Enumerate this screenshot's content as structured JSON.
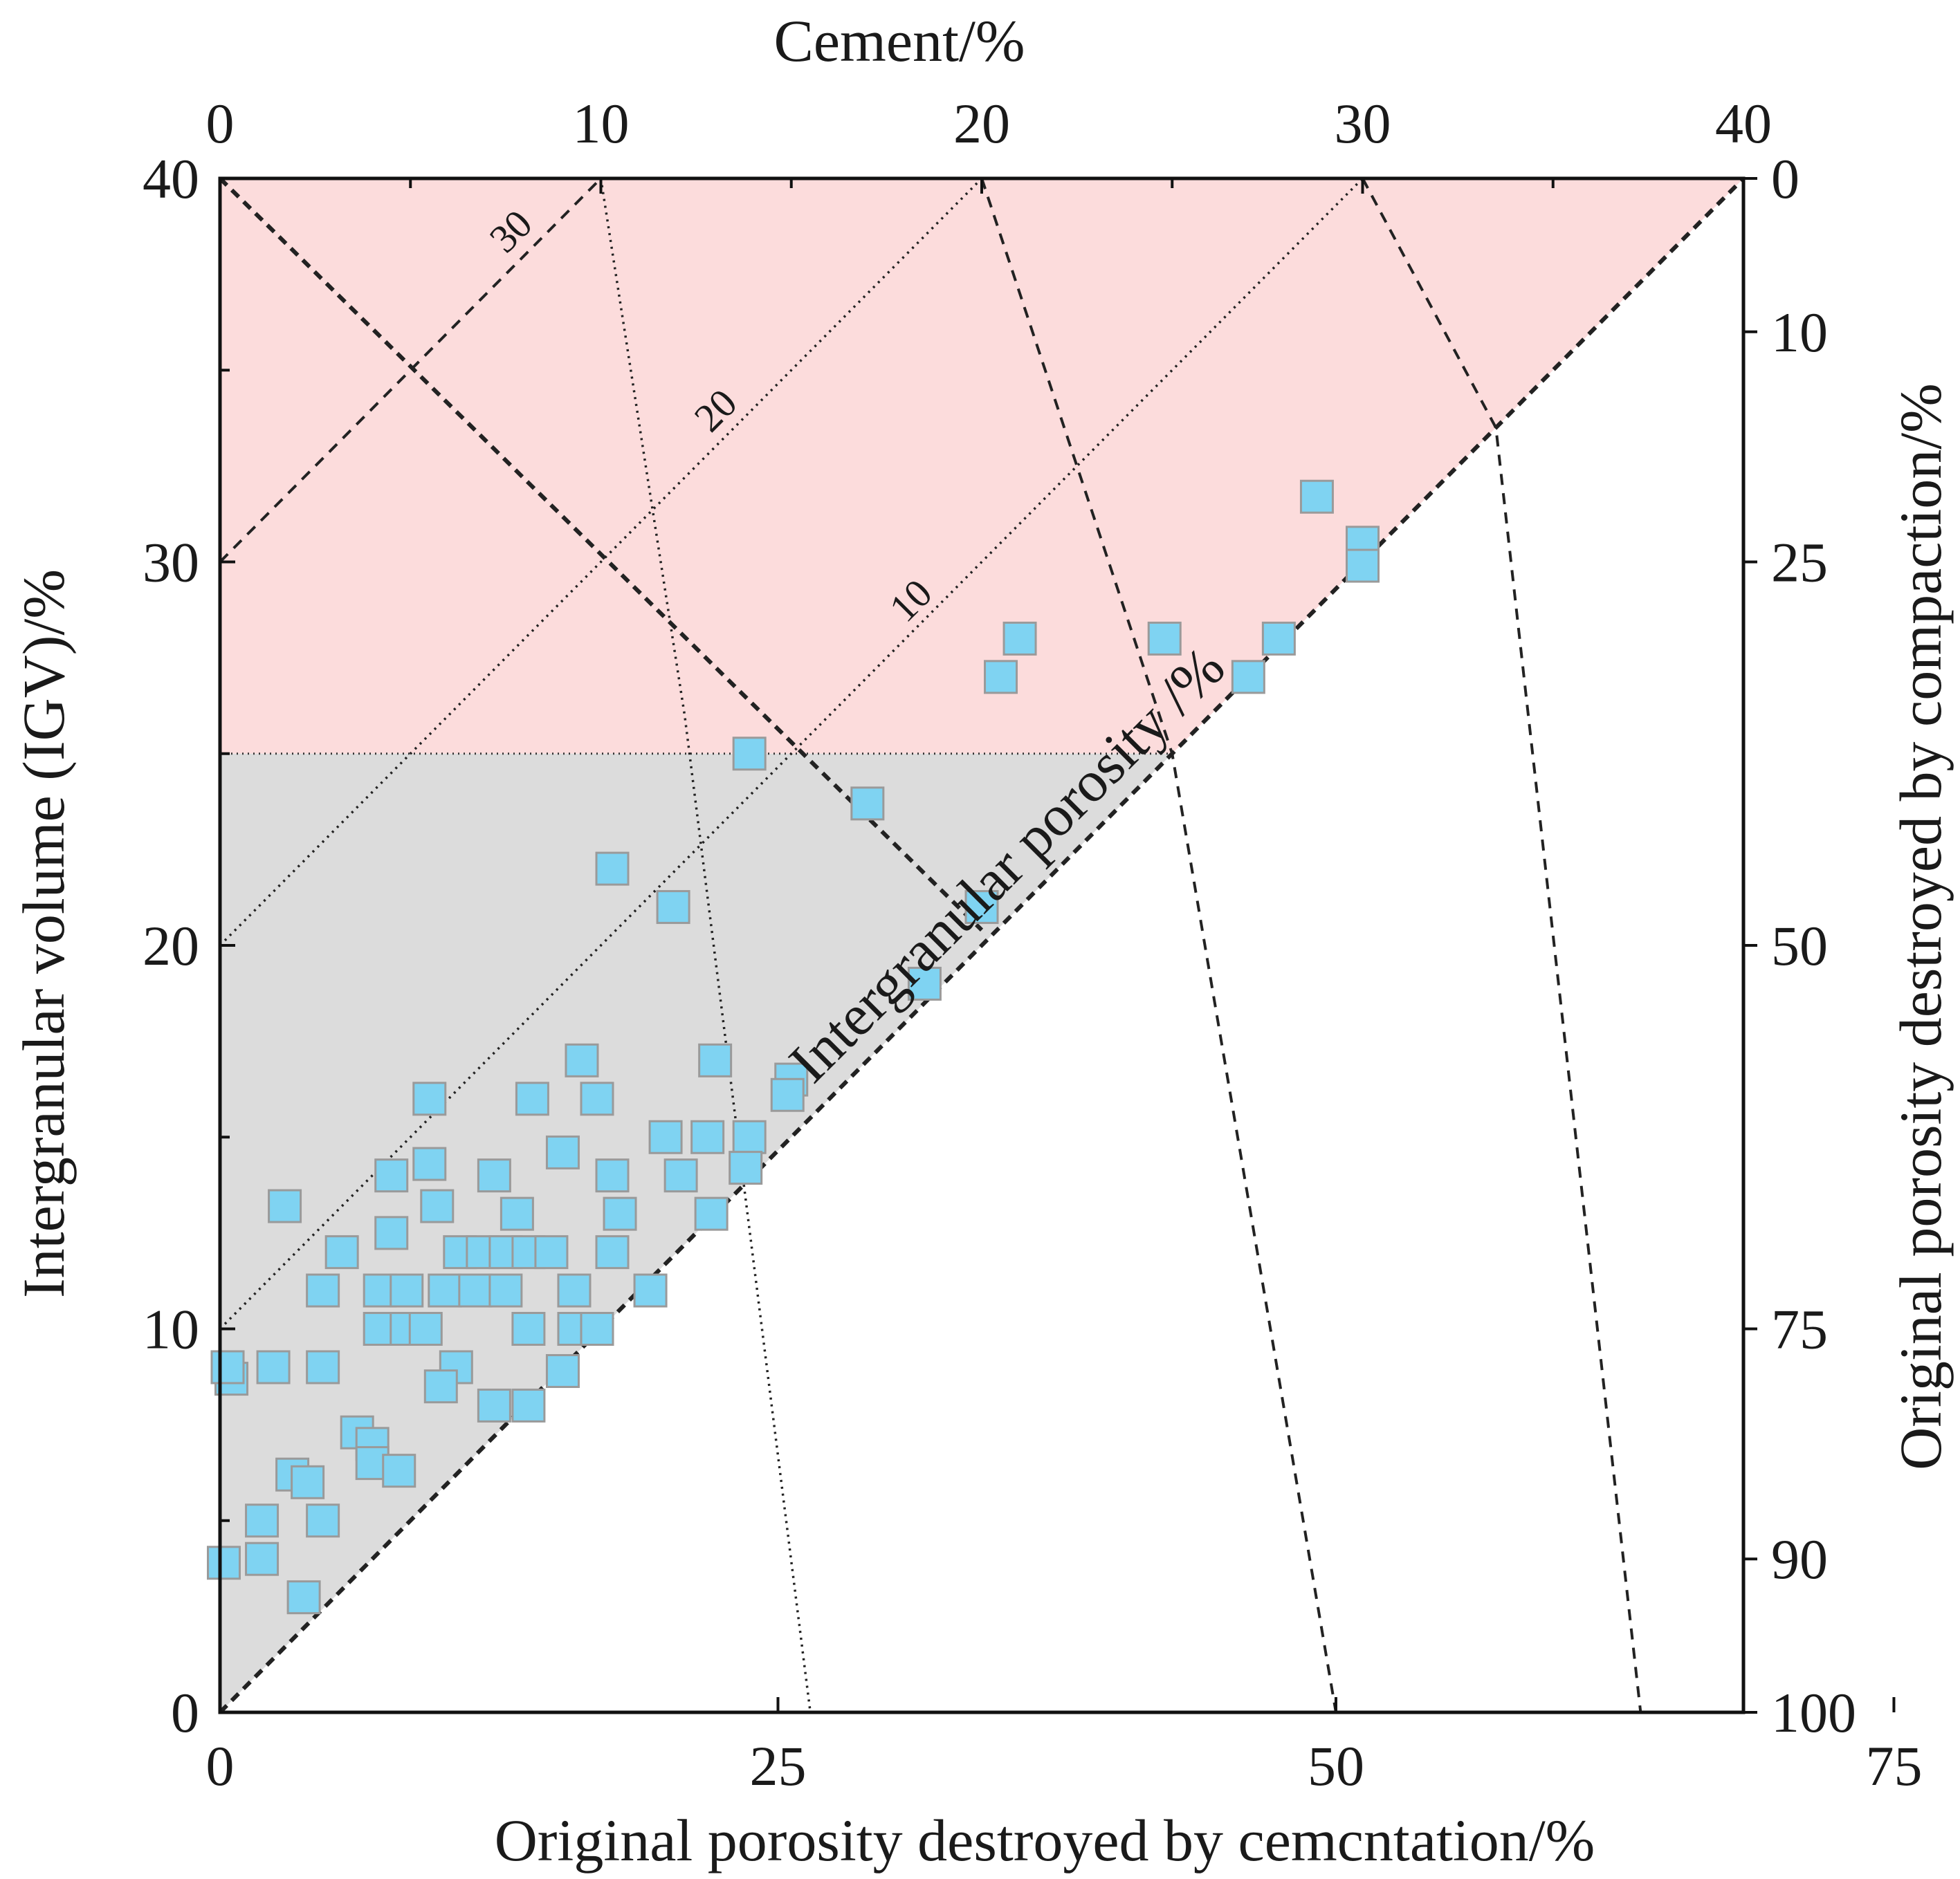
{
  "chart_data": {
    "type": "scatter",
    "title": "",
    "top_axis": {
      "label": "Cement/%",
      "range": [
        0,
        40
      ],
      "ticks": [
        "0",
        "10",
        "20",
        "30",
        "40"
      ]
    },
    "left_axis": {
      "label": "Intergranular volume (IGV)/%",
      "range": [
        0,
        40
      ],
      "ticks": [
        "0",
        "10",
        "20",
        "30",
        "40"
      ]
    },
    "right_axis": {
      "label": "Original porosity destroyed by compaction/%",
      "ticks": [
        "0",
        "10",
        "25",
        "50",
        "75",
        "90",
        "100"
      ]
    },
    "bottom_axis": {
      "label": "Original porosity destroyed by cemcntation/%",
      "ticks": [
        "0",
        "25",
        "50",
        "75"
      ]
    },
    "diagonal_label": "Intergranular porosity /%",
    "porosity_line_labels": [
      "30",
      "20",
      "10"
    ],
    "colors": {
      "upper_region": "#fcdcdc",
      "lower_region": "#dcdcdc",
      "marker": "#7fd3f2",
      "marker_edge": "#9a9a9a"
    },
    "series": [
      {
        "name": "samples",
        "marker": "square",
        "points": [
          [
            28.8,
            31.7
          ],
          [
            30,
            30.5
          ],
          [
            30,
            29.9
          ],
          [
            21,
            28
          ],
          [
            24.8,
            28
          ],
          [
            27.8,
            28
          ],
          [
            20.5,
            27
          ],
          [
            27,
            27
          ],
          [
            13.9,
            25
          ],
          [
            17,
            23.7
          ],
          [
            20,
            21
          ],
          [
            10.3,
            22
          ],
          [
            11.9,
            21
          ],
          [
            18.5,
            19
          ],
          [
            13,
            17
          ],
          [
            9.5,
            17
          ],
          [
            15,
            16.5
          ],
          [
            14.9,
            16.1
          ],
          [
            5.5,
            16
          ],
          [
            8.2,
            16
          ],
          [
            9.9,
            16
          ],
          [
            11.7,
            15
          ],
          [
            12.8,
            15
          ],
          [
            13.9,
            15
          ],
          [
            9,
            14.6
          ],
          [
            5.5,
            14.3
          ],
          [
            7.2,
            14
          ],
          [
            10.3,
            14
          ],
          [
            12.1,
            14
          ],
          [
            13.8,
            14.2
          ],
          [
            4.5,
            14
          ],
          [
            1.7,
            13.2
          ],
          [
            5.7,
            13.2
          ],
          [
            7.8,
            13
          ],
          [
            10.5,
            13
          ],
          [
            12.9,
            13
          ],
          [
            4.5,
            12.5
          ],
          [
            3.2,
            12
          ],
          [
            6.3,
            12
          ],
          [
            6.9,
            12
          ],
          [
            7.5,
            12
          ],
          [
            8.1,
            12
          ],
          [
            8.7,
            12
          ],
          [
            10.3,
            12
          ],
          [
            2.7,
            11
          ],
          [
            4.2,
            11
          ],
          [
            4.9,
            11
          ],
          [
            5.9,
            11
          ],
          [
            6.7,
            11
          ],
          [
            7.5,
            11
          ],
          [
            9.3,
            11
          ],
          [
            11.3,
            11
          ],
          [
            4.2,
            10
          ],
          [
            4.9,
            10
          ],
          [
            5.4,
            10
          ],
          [
            8.1,
            10
          ],
          [
            9.3,
            10
          ],
          [
            9.9,
            10
          ],
          [
            0.3,
            8.7
          ],
          [
            0.2,
            9
          ],
          [
            1.4,
            9
          ],
          [
            2.7,
            9
          ],
          [
            6.2,
            9
          ],
          [
            5.8,
            8.5
          ],
          [
            7.2,
            8
          ],
          [
            8.1,
            8
          ],
          [
            9,
            8.9
          ],
          [
            3.6,
            7.3
          ],
          [
            4,
            7
          ],
          [
            4,
            6.5
          ],
          [
            4.7,
            6.3
          ],
          [
            1.9,
            6.2
          ],
          [
            2.3,
            6
          ],
          [
            1.1,
            5
          ],
          [
            2.7,
            5
          ],
          [
            1.1,
            4
          ],
          [
            0.1,
            3.9
          ],
          [
            2.2,
            3
          ]
        ]
      }
    ]
  }
}
